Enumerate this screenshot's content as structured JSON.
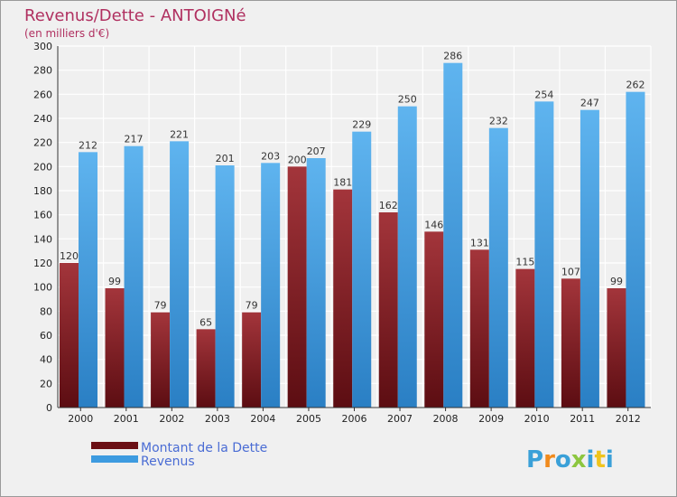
{
  "chart_data": {
    "type": "bar",
    "title": "Revenus/Dette - ANTOIGNé",
    "subtitle": "(en milliers d'€)",
    "categories": [
      "2000",
      "2001",
      "2002",
      "2003",
      "2004",
      "2005",
      "2006",
      "2007",
      "2008",
      "2009",
      "2010",
      "2011",
      "2012"
    ],
    "series": [
      {
        "name": "Montant de la Dette",
        "color": "#8b1e24",
        "values": [
          120,
          99,
          79,
          65,
          79,
          200,
          181,
          162,
          146,
          131,
          115,
          107,
          99
        ]
      },
      {
        "name": "Revenus",
        "color": "#3d9be0",
        "values": [
          212,
          217,
          221,
          201,
          203,
          207,
          229,
          250,
          286,
          232,
          254,
          247,
          262
        ]
      }
    ],
    "ylim": [
      0,
      300
    ],
    "yticks": [
      0,
      20,
      40,
      60,
      80,
      100,
      120,
      140,
      160,
      180,
      200,
      220,
      240,
      260,
      280,
      300
    ],
    "grid": true,
    "legend_position": "bottom-left"
  },
  "brand": {
    "letters": [
      "P",
      "r",
      "o",
      "x",
      "i",
      "t",
      "i"
    ],
    "colors": [
      "#3aa0d8",
      "#f08a1c",
      "#3aa0d8",
      "#8cc63f",
      "#3aa0d8",
      "#f0c41c",
      "#3aa0d8"
    ]
  }
}
